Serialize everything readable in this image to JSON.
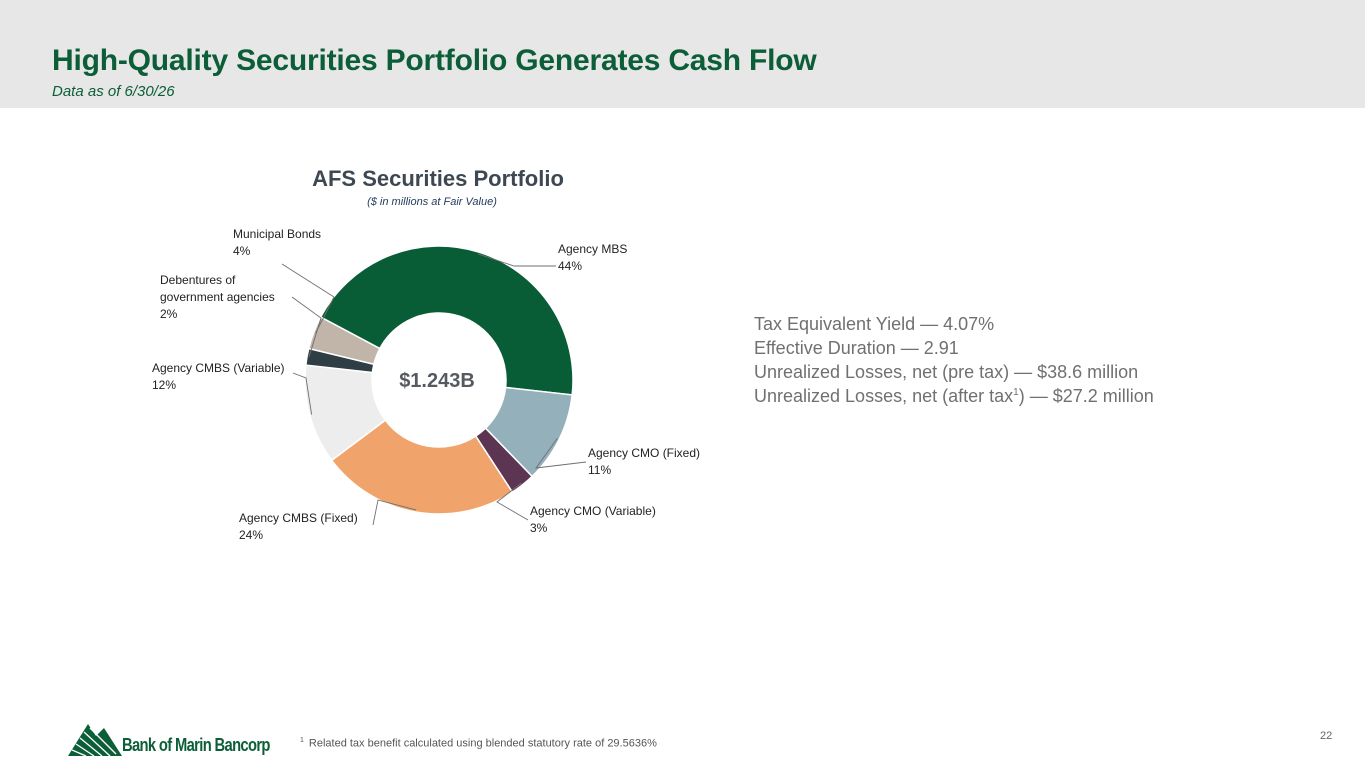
{
  "header": {
    "title": "High-Quality Securities Portfolio Generates Cash Flow",
    "subtitle": "Data as of 6/30/26"
  },
  "chart_data": {
    "type": "pie",
    "title": "AFS Securities Portfolio",
    "subtitle": "($ in millions at Fair Value)",
    "center_label": "$1.243B",
    "donut": true,
    "legend": "none",
    "categories": [
      "Agency MBS",
      "Agency CMO (Fixed)",
      "Agency CMO (Variable)",
      "Agency CMBS (Fixed)",
      "Agency CMBS (Variable)",
      "Debentures of government agencies",
      "Municipal Bonds"
    ],
    "labels": [
      "Agency MBS",
      "Agency CMO (Fixed)",
      "Agency CMO (Variable)",
      "Agency CMBS (Fixed)",
      "Agency CMBS (Variable)",
      "Debentures of\ngovernment agencies",
      "Municipal Bonds"
    ],
    "values": [
      44,
      11,
      3,
      24,
      12,
      2,
      4
    ],
    "value_labels": [
      "44%",
      "11%",
      "3%",
      "24%",
      "12%",
      "2%",
      "4%"
    ],
    "colors": [
      "#085d37",
      "#93b0bb",
      "#5c3553",
      "#f0a46c",
      "#ededed",
      "#2f3d45",
      "#c1b4a9"
    ]
  },
  "metrics": {
    "yield": "Tax Equivalent Yield — 4.07%",
    "duration": "Effective Duration — 2.91",
    "losses_pre_tax": "Unrealized Losses, net (pre tax) — $38.6 million",
    "losses_after_tax_prefix": "Unrealized Losses, net (after tax",
    "losses_after_tax_sup": "1",
    "losses_after_tax_suffix": ") — $27.2 million"
  },
  "footer": {
    "logo_text": "Bank of Marin Bancorp",
    "footnote_marker": "1",
    "footnote_text": "Related tax benefit calculated using blended statutory rate of 29.5636%",
    "page_number": "22"
  }
}
